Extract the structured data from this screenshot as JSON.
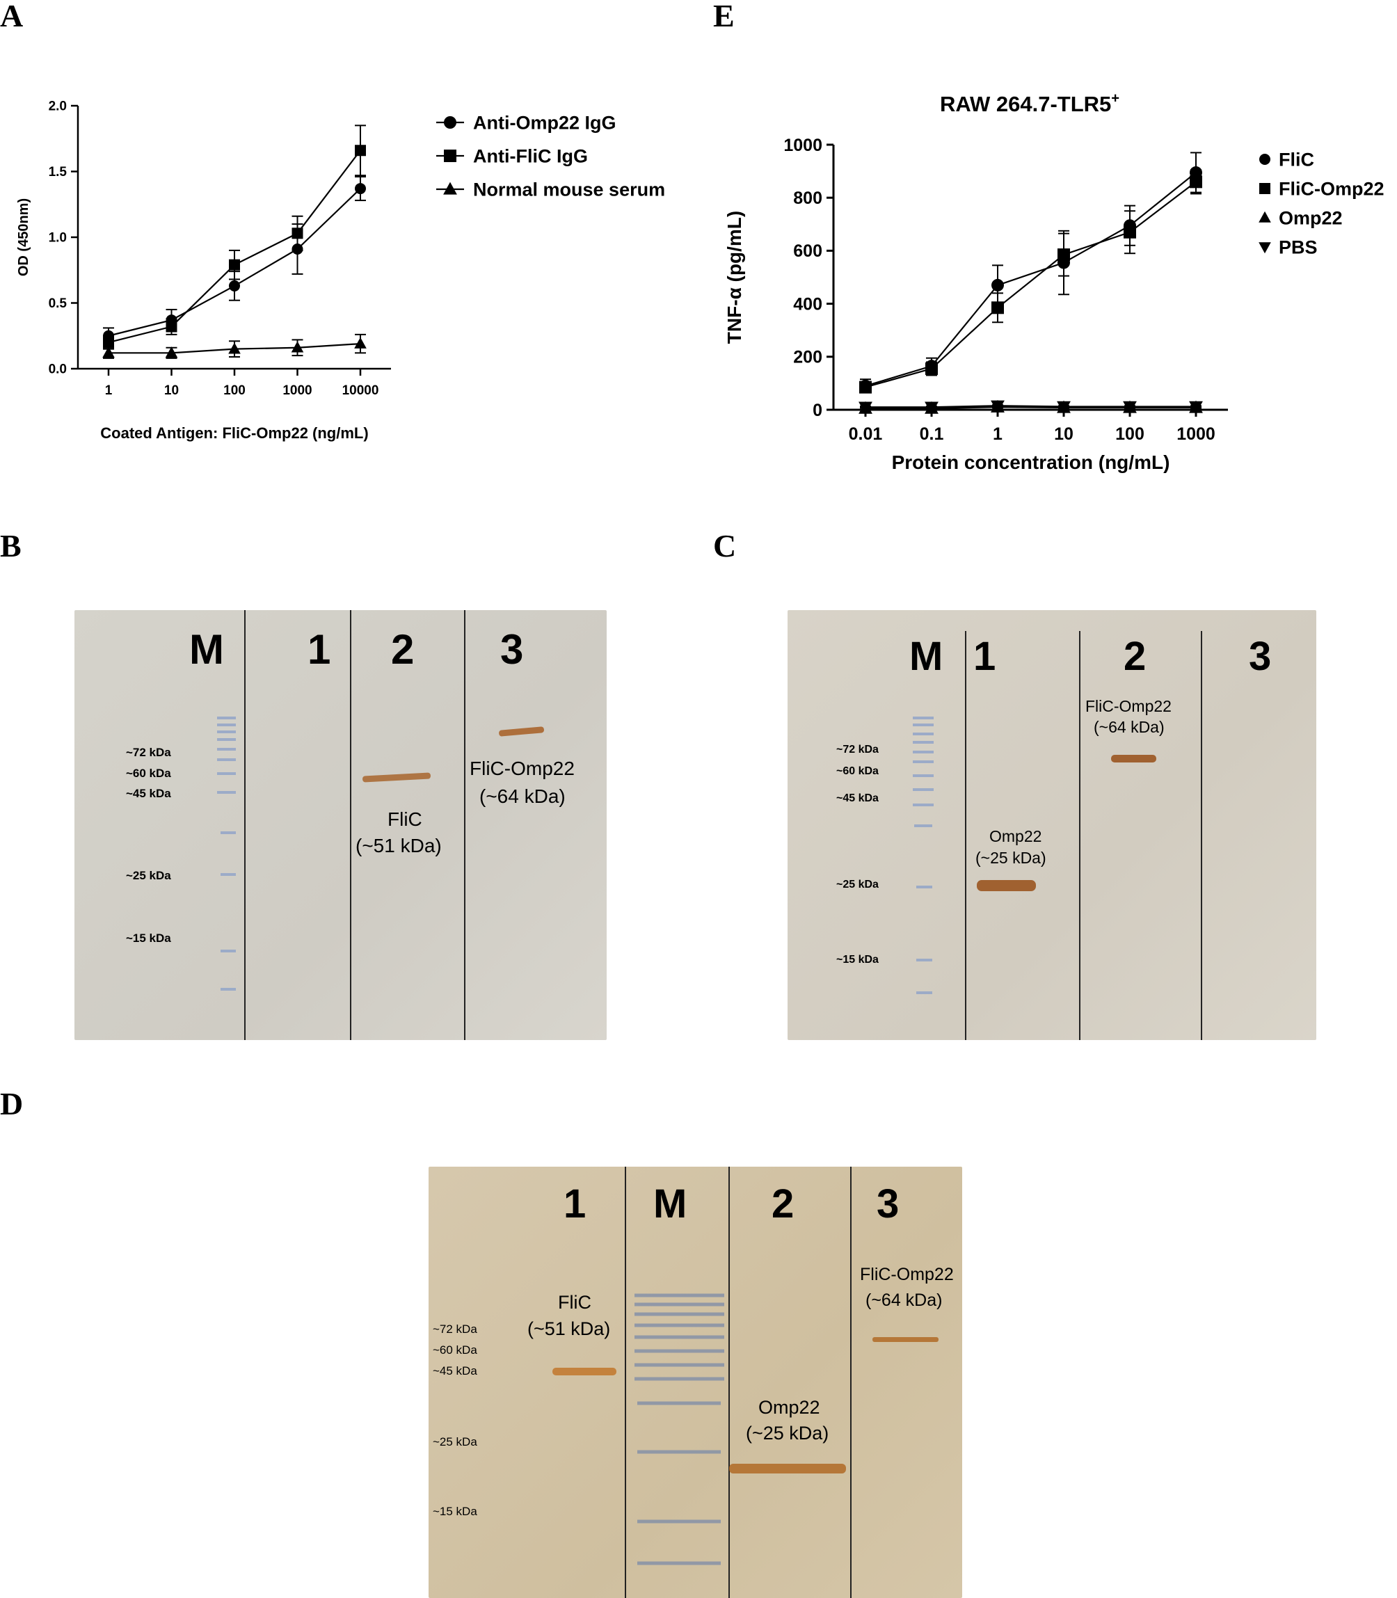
{
  "panels": {
    "A": "A",
    "B": "B",
    "C": "C",
    "D": "D",
    "E": "E"
  },
  "chart_data": [
    {
      "panel": "A",
      "type": "line",
      "x_scale": "log",
      "x": [
        1,
        10,
        100,
        1000,
        10000
      ],
      "x_tick_labels": [
        "1",
        "10",
        "100",
        "1000",
        "10000"
      ],
      "xlabel": "Coated Antigen: FliC-Omp22 (ng/mL)",
      "ylabel": "OD (450nm)",
      "ylim": [
        0,
        2.0
      ],
      "y_ticks": [
        0.0,
        0.5,
        1.0,
        1.5,
        2.0
      ],
      "y_tick_labels": [
        "0.0",
        "0.5",
        "1.0",
        "1.5",
        "2.0"
      ],
      "legend_position": "right",
      "series": [
        {
          "name": "Anti-Omp22 IgG",
          "marker": "circle",
          "values": [
            0.25,
            0.37,
            0.63,
            0.91,
            1.37
          ],
          "errors": [
            0.06,
            0.08,
            0.11,
            0.19,
            0.09
          ]
        },
        {
          "name": "Anti-FliC IgG",
          "marker": "square",
          "values": [
            0.2,
            0.32,
            0.79,
            1.03,
            1.66
          ],
          "errors": [
            0.05,
            0.06,
            0.11,
            0.13,
            0.19
          ]
        },
        {
          "name": "Normal mouse serum",
          "marker": "triangle-up",
          "values": [
            0.12,
            0.12,
            0.15,
            0.16,
            0.19
          ],
          "errors": [
            0.04,
            0.04,
            0.06,
            0.06,
            0.07
          ]
        }
      ]
    },
    {
      "panel": "E",
      "type": "line",
      "title": "RAW 264.7-TLR5",
      "title_sup": "+",
      "x_scale": "log",
      "x": [
        0.01,
        0.1,
        1,
        10,
        100,
        1000
      ],
      "x_tick_labels": [
        "0.01",
        "0.1",
        "1",
        "10",
        "100",
        "1000"
      ],
      "xlabel": "Protein concentration (ng/mL)",
      "ylabel": "TNF-α (pg/mL)",
      "ylim": [
        0,
        1000
      ],
      "y_ticks": [
        0,
        200,
        400,
        600,
        800,
        1000
      ],
      "y_tick_labels": [
        "0",
        "200",
        "400",
        "600",
        "800",
        "1000"
      ],
      "legend_position": "right",
      "series": [
        {
          "name": "FliC",
          "marker": "circle",
          "values": [
            90,
            165,
            470,
            555,
            695,
            895
          ],
          "errors": [
            25,
            30,
            75,
            120,
            75,
            75
          ]
        },
        {
          "name": "FliC-Omp22",
          "marker": "square",
          "values": [
            85,
            155,
            385,
            585,
            670,
            860
          ],
          "errors": [
            20,
            25,
            55,
            80,
            80,
            45
          ]
        },
        {
          "name": "Omp22",
          "marker": "triangle-up",
          "values": [
            5,
            5,
            10,
            8,
            8,
            8
          ],
          "errors": [
            3,
            3,
            3,
            3,
            3,
            3
          ]
        },
        {
          "name": "PBS",
          "marker": "triangle-down",
          "values": [
            10,
            10,
            15,
            12,
            12,
            12
          ],
          "errors": [
            3,
            3,
            3,
            3,
            3,
            3
          ]
        }
      ]
    }
  ],
  "gels": {
    "B": {
      "lanes": [
        "M",
        "1",
        "2",
        "3"
      ],
      "markers": [
        "~72 kDa",
        "~60 kDa",
        "~45 kDa",
        "~25 kDa",
        "~15 kDa"
      ],
      "bands": [
        {
          "label": "FliC",
          "size": "(~51 kDa)"
        },
        {
          "label": "FliC-Omp22",
          "size": "(~64 kDa)"
        }
      ]
    },
    "C": {
      "lanes": [
        "M",
        "1",
        "2",
        "3"
      ],
      "markers": [
        "~72 kDa",
        "~60 kDa",
        "~45 kDa",
        "~25 kDa",
        "~15 kDa"
      ],
      "bands": [
        {
          "label": "Omp22",
          "size": "(~25 kDa)"
        },
        {
          "label": "FliC-Omp22",
          "size": "(~64 kDa)"
        }
      ]
    },
    "D": {
      "lanes": [
        "1",
        "M",
        "2",
        "3"
      ],
      "markers": [
        "~72 kDa",
        "~60 kDa",
        "~45 kDa",
        "~25 kDa",
        "~15 kDa"
      ],
      "bands": [
        {
          "label": "FliC",
          "size": "(~51 kDa)"
        },
        {
          "label": "Omp22",
          "size": "(~25 kDa)"
        },
        {
          "label": "FliC-Omp22",
          "size": "(~64 kDa)"
        }
      ]
    }
  }
}
